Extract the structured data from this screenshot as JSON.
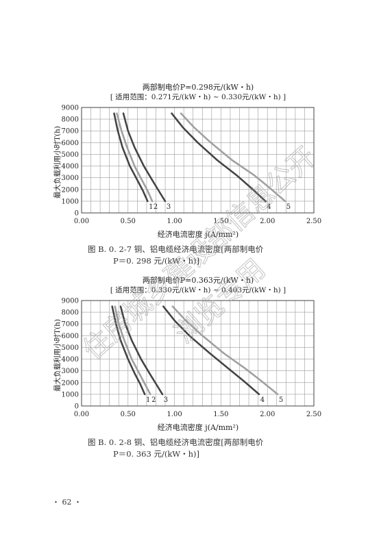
{
  "charts": [
    {
      "figure_caption_line1": "图 B. 0. 2-7    铜、铝电缆经济电流密度[两部制电价",
      "figure_caption_line2": "P＝0. 298 元/(kW・h)]"
    },
    {
      "figure_caption_line1": "图 B. 0. 2-8    铜、铝电缆经济电流密度[两部制电价",
      "figure_caption_line2": "P＝0. 363 元/(kW・h)]"
    }
  ],
  "page_number": "・ 62 ・",
  "watermark": {
    "line1": "住房城乡建设部信息公开",
    "line2": "浏览专用"
  },
  "colors": {
    "dark_series": "#444444",
    "light_series": "#a0a0a0",
    "grid": "#9a9a9a"
  },
  "chart_data": [
    {
      "type": "line",
      "title": "两部制电价P=0.298元/(kW・h)",
      "subtitle": "[ 适用范围：0.271元/(kW・h) ~ 0.330元/(kW・h) ]",
      "xlabel": "经济电流密度 j(A/mm²)",
      "ylabel": "最大负载利用小时T(h)",
      "xlim": [
        0,
        2.5
      ],
      "ylim": [
        0,
        9000
      ],
      "xticks": [
        "0.00",
        "0.50",
        "1.00",
        "1.50",
        "2.00",
        "2.50"
      ],
      "yticks": [
        "0",
        "1000",
        "2000",
        "3000",
        "4000",
        "5000",
        "6000",
        "7000",
        "8000",
        "9000"
      ],
      "grid": true,
      "series": [
        {
          "name": "1",
          "color": "dark",
          "x": [
            0.35,
            0.39,
            0.44,
            0.52,
            0.6,
            0.66,
            0.71
          ],
          "y": [
            8500,
            7000,
            5600,
            4000,
            2800,
            1900,
            1000
          ]
        },
        {
          "name": "2",
          "color": "light",
          "x": [
            0.38,
            0.43,
            0.49,
            0.57,
            0.65,
            0.71,
            0.76
          ],
          "y": [
            8500,
            7000,
            5600,
            4000,
            2800,
            1900,
            1000
          ]
        },
        {
          "name": "3",
          "color": "dark",
          "x": [
            0.45,
            0.5,
            0.57,
            0.67,
            0.76,
            0.83,
            0.9
          ],
          "y": [
            8500,
            7000,
            5600,
            4000,
            2800,
            1900,
            1000
          ]
        },
        {
          "name": "4",
          "color": "dark",
          "x": [
            0.97,
            1.09,
            1.25,
            1.46,
            1.67,
            1.83,
            1.98
          ],
          "y": [
            8500,
            7300,
            6000,
            4500,
            3200,
            2100,
            1000
          ]
        },
        {
          "name": "5",
          "color": "light",
          "x": [
            1.07,
            1.21,
            1.39,
            1.62,
            1.86,
            2.03,
            2.19
          ],
          "y": [
            8500,
            7300,
            6000,
            4500,
            3200,
            2100,
            1000
          ]
        }
      ]
    },
    {
      "type": "line",
      "title": "两部制电价P=0.363元/(kW・h)",
      "subtitle": "[ 适用范围：0.330元/(kW・h) ~ 0.403元/(kW・h) ]",
      "xlabel": "经济电流密度 j(A/mm²)",
      "ylabel": "最大负载利用小时T(h)",
      "xlim": [
        0,
        2.5
      ],
      "ylim": [
        0,
        9000
      ],
      "xticks": [
        "0.00",
        "0.50",
        "1.00",
        "1.50",
        "2.00",
        "2.50"
      ],
      "yticks": [
        "0",
        "1000",
        "2000",
        "3000",
        "4000",
        "5000",
        "6000",
        "7000",
        "8000",
        "9000"
      ],
      "grid": true,
      "series": [
        {
          "name": "1",
          "color": "dark",
          "x": [
            0.33,
            0.37,
            0.42,
            0.5,
            0.57,
            0.63,
            0.68
          ],
          "y": [
            8500,
            7000,
            5600,
            4000,
            2800,
            1900,
            1000
          ]
        },
        {
          "name": "2",
          "color": "light",
          "x": [
            0.36,
            0.4,
            0.46,
            0.54,
            0.62,
            0.68,
            0.74
          ],
          "y": [
            8500,
            7000,
            5600,
            4000,
            2800,
            1900,
            1000
          ]
        },
        {
          "name": "3",
          "color": "dark",
          "x": [
            0.42,
            0.47,
            0.54,
            0.64,
            0.73,
            0.8,
            0.87
          ],
          "y": [
            8500,
            7000,
            5600,
            4000,
            2800,
            1900,
            1000
          ]
        },
        {
          "name": "4",
          "color": "dark",
          "x": [
            0.88,
            1.0,
            1.16,
            1.38,
            1.58,
            1.75,
            1.91
          ],
          "y": [
            8500,
            7300,
            6000,
            4500,
            3200,
            2100,
            1000
          ]
        },
        {
          "name": "5",
          "color": "light",
          "x": [
            0.98,
            1.12,
            1.3,
            1.53,
            1.76,
            1.94,
            2.11
          ],
          "y": [
            8500,
            7300,
            6000,
            4500,
            3200,
            2100,
            1000
          ]
        }
      ]
    }
  ]
}
